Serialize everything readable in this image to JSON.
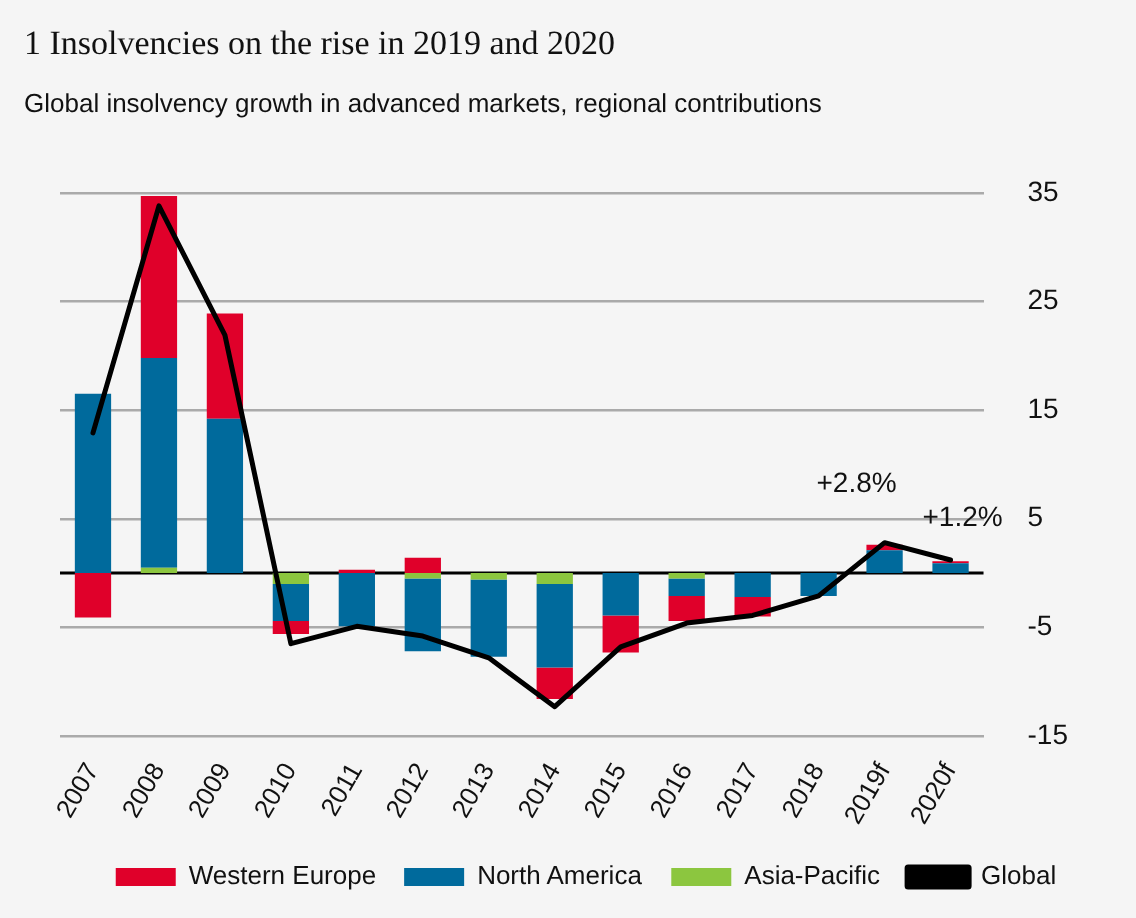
{
  "chart_data": {
    "type": "bar",
    "title": "1 Insolvencies on the rise in 2019 and 2020",
    "subtitle": "Global insolvency growth in advanced markets, regional contributions",
    "categories": [
      "2007",
      "2008",
      "2009",
      "2010",
      "2011",
      "2012",
      "2013",
      "2014",
      "2015",
      "2016",
      "2017",
      "2018",
      "2019f",
      "2020f"
    ],
    "stacked": true,
    "series": [
      {
        "name": "Asia-Pacific",
        "color": "#8cc63f",
        "values": [
          null,
          0.5,
          null,
          -1.0,
          null,
          -0.5,
          -0.6,
          -1.0,
          null,
          -0.5,
          null,
          null,
          null,
          null
        ]
      },
      {
        "name": "North America",
        "color": "#006a9c",
        "values": [
          16.5,
          19.3,
          14.2,
          -3.4,
          -4.9,
          -6.7,
          -7.1,
          -7.7,
          -3.9,
          -1.6,
          -2.2,
          -2.1,
          2.1,
          0.9
        ]
      },
      {
        "name": "Western Europe",
        "color": "#e0002a",
        "values": [
          -4.1,
          14.9,
          9.7,
          -1.2,
          0.3,
          1.4,
          null,
          -2.9,
          -3.4,
          -2.3,
          -1.8,
          null,
          0.5,
          0.2
        ]
      },
      {
        "name": "Global",
        "type": "line",
        "color": "#000000",
        "values": [
          12.9,
          33.8,
          21.9,
          -6.5,
          -4.9,
          -5.8,
          -7.8,
          -12.3,
          -6.8,
          -4.6,
          -3.9,
          -2.1,
          2.8,
          1.2
        ]
      }
    ],
    "ylim": [
      -15,
      35
    ],
    "yticks": [
      -15,
      -5,
      5,
      15,
      25,
      35
    ],
    "grid": "y",
    "legend": "bottom",
    "marker": "none",
    "line_style": "solid",
    "annotations": [
      {
        "text": "+2.8%",
        "x": "2019f",
        "y": 2.8
      },
      {
        "text": "+1.2%",
        "x": "2020f",
        "y": 1.2
      }
    ]
  }
}
